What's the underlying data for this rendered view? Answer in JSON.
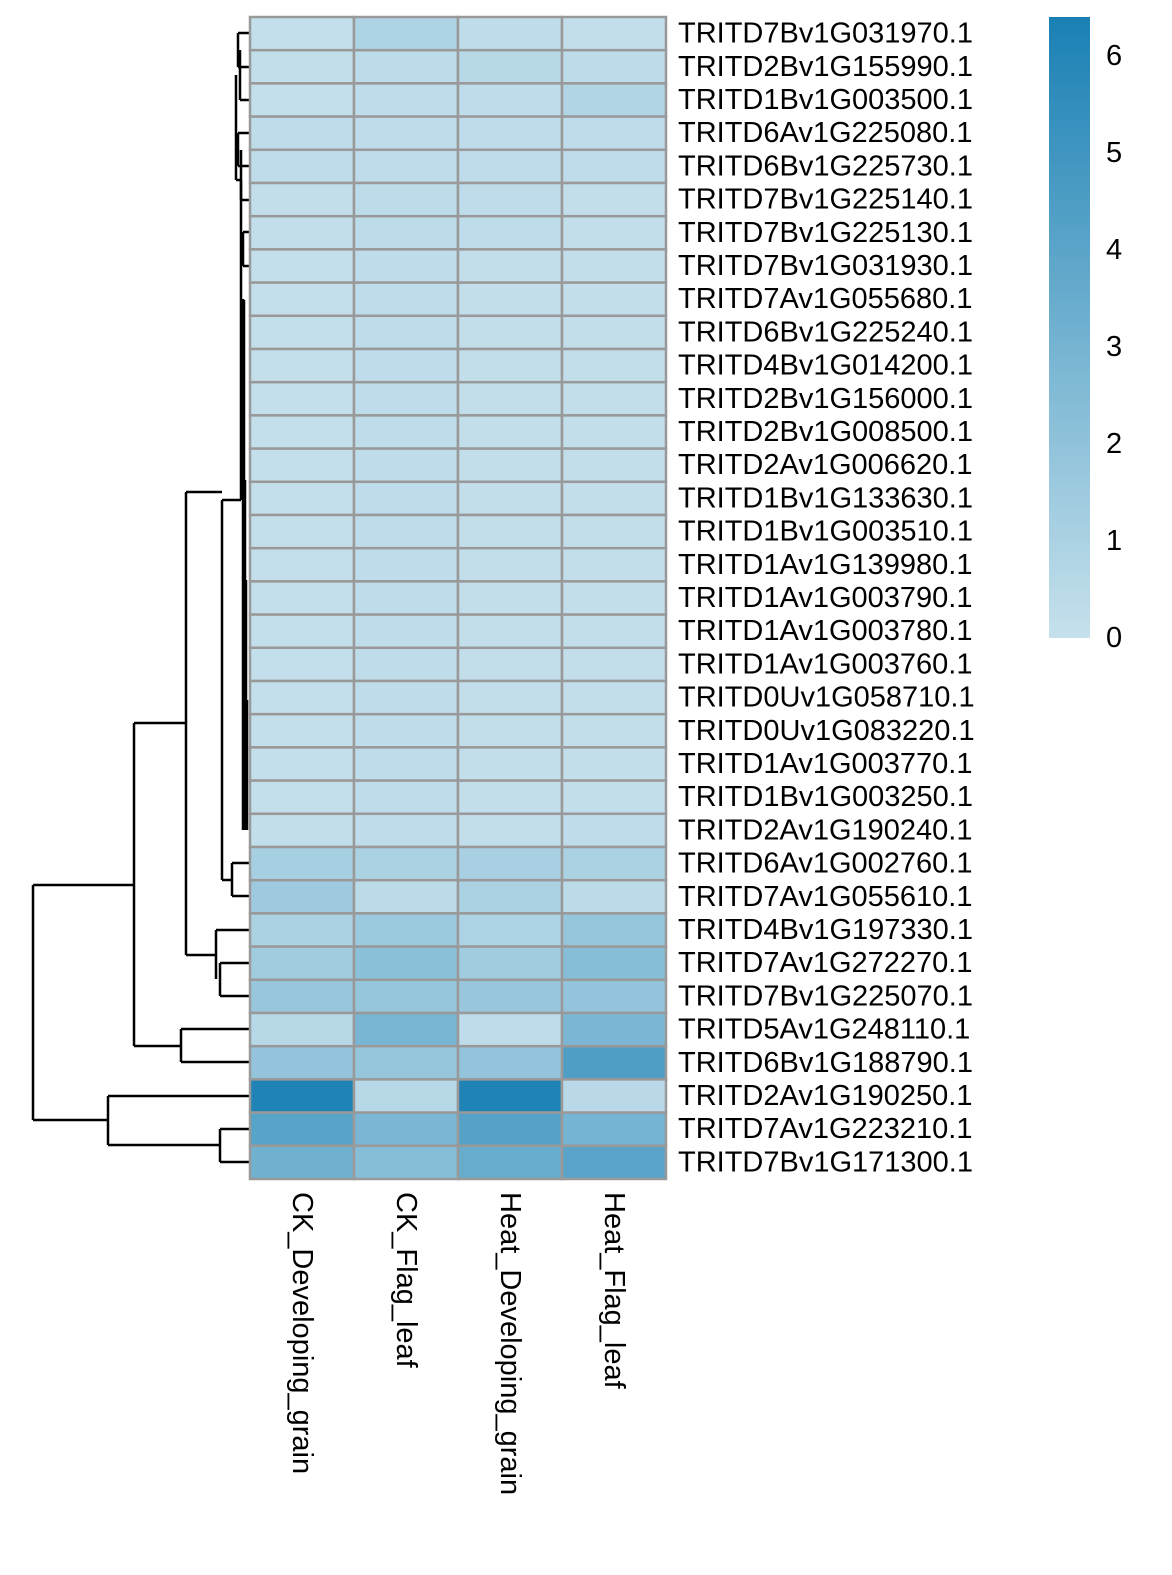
{
  "chart_data": {
    "type": "heatmap",
    "title": "",
    "columns": [
      "CK_Developing_grain",
      "CK_Flag_leaf",
      "Heat_Developing_grain",
      "Heat_Flag_leaf"
    ],
    "rows": [
      "TRITD7Bv1G031970.1",
      "TRITD2Bv1G155990.1",
      "TRITD1Bv1G003500.1",
      "TRITD6Av1G225080.1",
      "TRITD6Bv1G225730.1",
      "TRITD7Bv1G225140.1",
      "TRITD7Bv1G225130.1",
      "TRITD7Bv1G031930.1",
      "TRITD7Av1G055680.1",
      "TRITD6Bv1G225240.1",
      "TRITD4Bv1G014200.1",
      "TRITD2Bv1G156000.1",
      "TRITD2Bv1G008500.1",
      "TRITD2Av1G006620.1",
      "TRITD1Bv1G133630.1",
      "TRITD1Bv1G003510.1",
      "TRITD1Av1G139980.1",
      "TRITD1Av1G003790.1",
      "TRITD1Av1G003780.1",
      "TRITD1Av1G003760.1",
      "TRITD0Uv1G058710.1",
      "TRITD0Uv1G083220.1",
      "TRITD1Av1G003770.1",
      "TRITD1Bv1G003250.1",
      "TRITD2Av1G190240.1",
      "TRITD6Av1G002760.1",
      "TRITD7Av1G055610.1",
      "TRITD4Bv1G197330.1",
      "TRITD7Av1G272270.1",
      "TRITD7Bv1G225070.1",
      "TRITD5Av1G248110.1",
      "TRITD6Bv1G188790.1",
      "TRITD2Av1G190250.1",
      "TRITD7Av1G223210.1",
      "TRITD7Bv1G171300.1"
    ],
    "values": [
      [
        0.15,
        0.9,
        0.3,
        0.2
      ],
      [
        0.2,
        0.35,
        0.6,
        0.35
      ],
      [
        0.1,
        0.3,
        0.3,
        0.8
      ],
      [
        0.3,
        0.3,
        0.3,
        0.3
      ],
      [
        0.3,
        0.3,
        0.3,
        0.3
      ],
      [
        0.2,
        0.35,
        0.3,
        0.2
      ],
      [
        0.2,
        0.35,
        0.3,
        0.2
      ],
      [
        0.1,
        0.3,
        0.2,
        0.2
      ],
      [
        0.1,
        0.3,
        0.2,
        0.2
      ],
      [
        0.1,
        0.3,
        0.2,
        0.2
      ],
      [
        0.1,
        0.3,
        0.2,
        0.2
      ],
      [
        0.1,
        0.3,
        0.2,
        0.2
      ],
      [
        0.1,
        0.3,
        0.2,
        0.2
      ],
      [
        0.1,
        0.3,
        0.2,
        0.2
      ],
      [
        0.1,
        0.3,
        0.2,
        0.2
      ],
      [
        0.1,
        0.3,
        0.2,
        0.2
      ],
      [
        0.1,
        0.3,
        0.2,
        0.2
      ],
      [
        0.1,
        0.3,
        0.2,
        0.2
      ],
      [
        0.1,
        0.3,
        0.2,
        0.2
      ],
      [
        0.1,
        0.3,
        0.2,
        0.2
      ],
      [
        0.1,
        0.3,
        0.2,
        0.2
      ],
      [
        0.1,
        0.3,
        0.2,
        0.2
      ],
      [
        0.1,
        0.3,
        0.2,
        0.2
      ],
      [
        0.1,
        0.3,
        0.2,
        0.2
      ],
      [
        0.2,
        0.3,
        0.2,
        0.3
      ],
      [
        1.2,
        1.0,
        1.1,
        1.0
      ],
      [
        1.5,
        0.4,
        1.0,
        0.4
      ],
      [
        1.0,
        1.6,
        0.9,
        1.8
      ],
      [
        1.4,
        2.2,
        1.4,
        2.4
      ],
      [
        1.7,
        1.8,
        1.7,
        1.9
      ],
      [
        0.6,
        2.9,
        0.3,
        2.8
      ],
      [
        1.9,
        1.8,
        1.9,
        4.4
      ],
      [
        6.2,
        0.6,
        6.2,
        0.5
      ],
      [
        4.1,
        2.8,
        4.2,
        3.0
      ],
      [
        3.2,
        2.4,
        3.5,
        4.0
      ]
    ],
    "colorbar": {
      "ticks": [
        0,
        1,
        2,
        3,
        4,
        5,
        6
      ],
      "vmin": 0,
      "vmax": 6.4,
      "low_color": "#c6e1ec",
      "high_color": "#1a80b4"
    },
    "row_dendrogram": true,
    "grid_color": "#999999"
  }
}
